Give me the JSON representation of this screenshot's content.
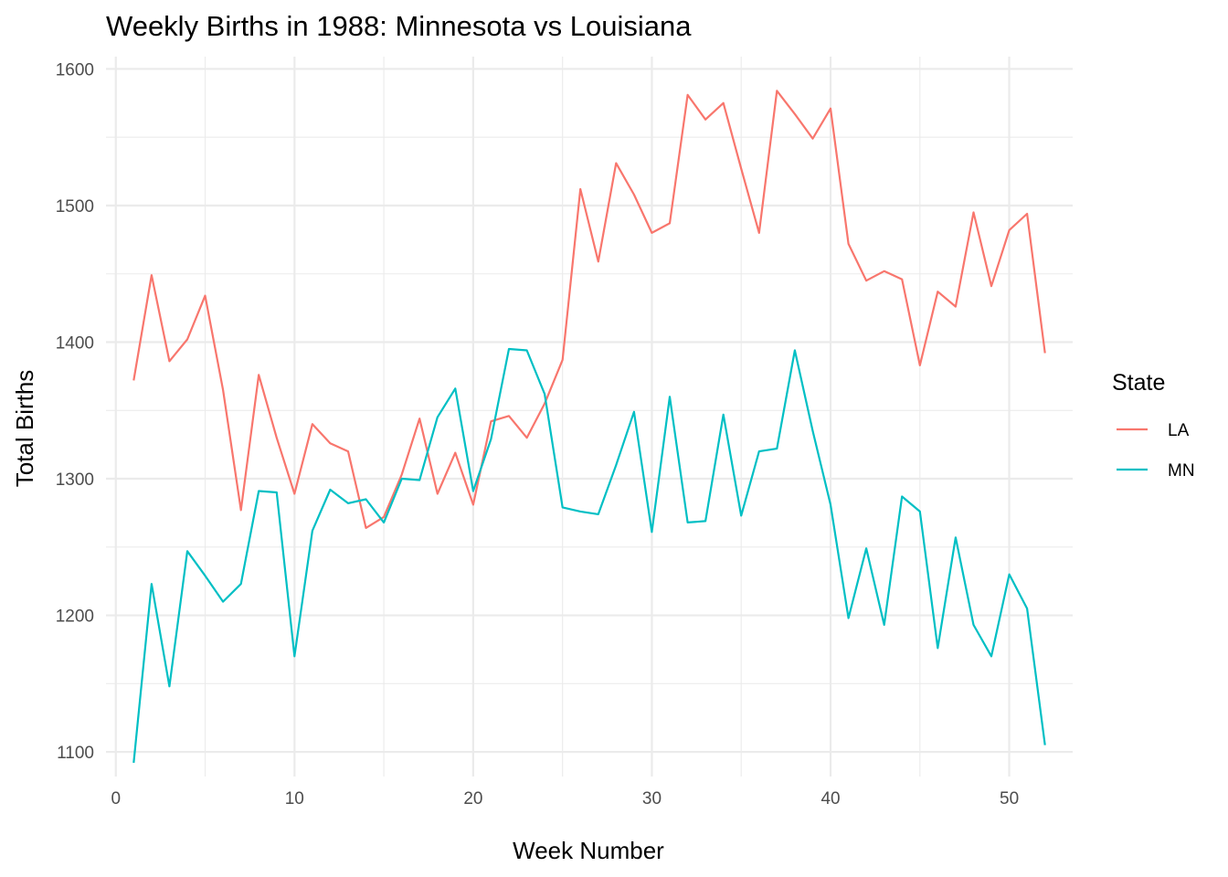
{
  "chart_data": {
    "type": "line",
    "title": "Weekly Births in 1988: Minnesota vs Louisiana",
    "xlabel": "Week Number",
    "ylabel": "Total Births",
    "xlim": [
      -0.55,
      53.55
    ],
    "ylim": [
      1082,
      1609
    ],
    "x_ticks": [
      0,
      10,
      20,
      30,
      40,
      50
    ],
    "y_ticks": [
      1100,
      1200,
      1300,
      1400,
      1500,
      1600
    ],
    "x_minor_ticks": [
      5,
      15,
      25,
      35,
      45
    ],
    "y_minor_ticks": [
      1150,
      1250,
      1350,
      1450,
      1550
    ],
    "grid": true,
    "legend": {
      "title": "State",
      "position": "right"
    },
    "x": [
      1,
      2,
      3,
      4,
      5,
      6,
      7,
      8,
      9,
      10,
      11,
      12,
      13,
      14,
      15,
      16,
      17,
      18,
      19,
      20,
      21,
      22,
      23,
      24,
      25,
      26,
      27,
      28,
      29,
      30,
      31,
      32,
      33,
      34,
      35,
      36,
      37,
      38,
      39,
      40,
      41,
      42,
      43,
      44,
      45,
      46,
      47,
      48,
      49,
      50,
      51,
      52
    ],
    "series": [
      {
        "name": "LA",
        "color": "#f8766d",
        "values": [
          1372,
          1449,
          1386,
          1402,
          1434,
          1365,
          1277,
          1376,
          1330,
          1289,
          1340,
          1326,
          1320,
          1264,
          1272,
          1303,
          1344,
          1289,
          1319,
          1281,
          1342,
          1346,
          1330,
          1355,
          1387,
          1512,
          1459,
          1531,
          1508,
          1480,
          1487,
          1581,
          1563,
          1575,
          1527,
          1480,
          1584,
          1567,
          1549,
          1571,
          1472,
          1445,
          1452,
          1446,
          1383,
          1437,
          1426,
          1495,
          1441,
          1482,
          1494,
          1392
        ]
      },
      {
        "name": "MN",
        "color": "#00bfc4",
        "values": [
          1092,
          1223,
          1148,
          1247,
          1229,
          1210,
          1223,
          1291,
          1290,
          1170,
          1262,
          1292,
          1282,
          1285,
          1268,
          1300,
          1299,
          1345,
          1366,
          1291,
          1329,
          1395,
          1394,
          1362,
          1279,
          1276,
          1274,
          1310,
          1349,
          1261,
          1360,
          1268,
          1269,
          1347,
          1273,
          1320,
          1322,
          1394,
          1335,
          1281,
          1198,
          1249,
          1193,
          1287,
          1276,
          1176,
          1257,
          1193,
          1170,
          1230,
          1205,
          1105
        ]
      }
    ]
  }
}
